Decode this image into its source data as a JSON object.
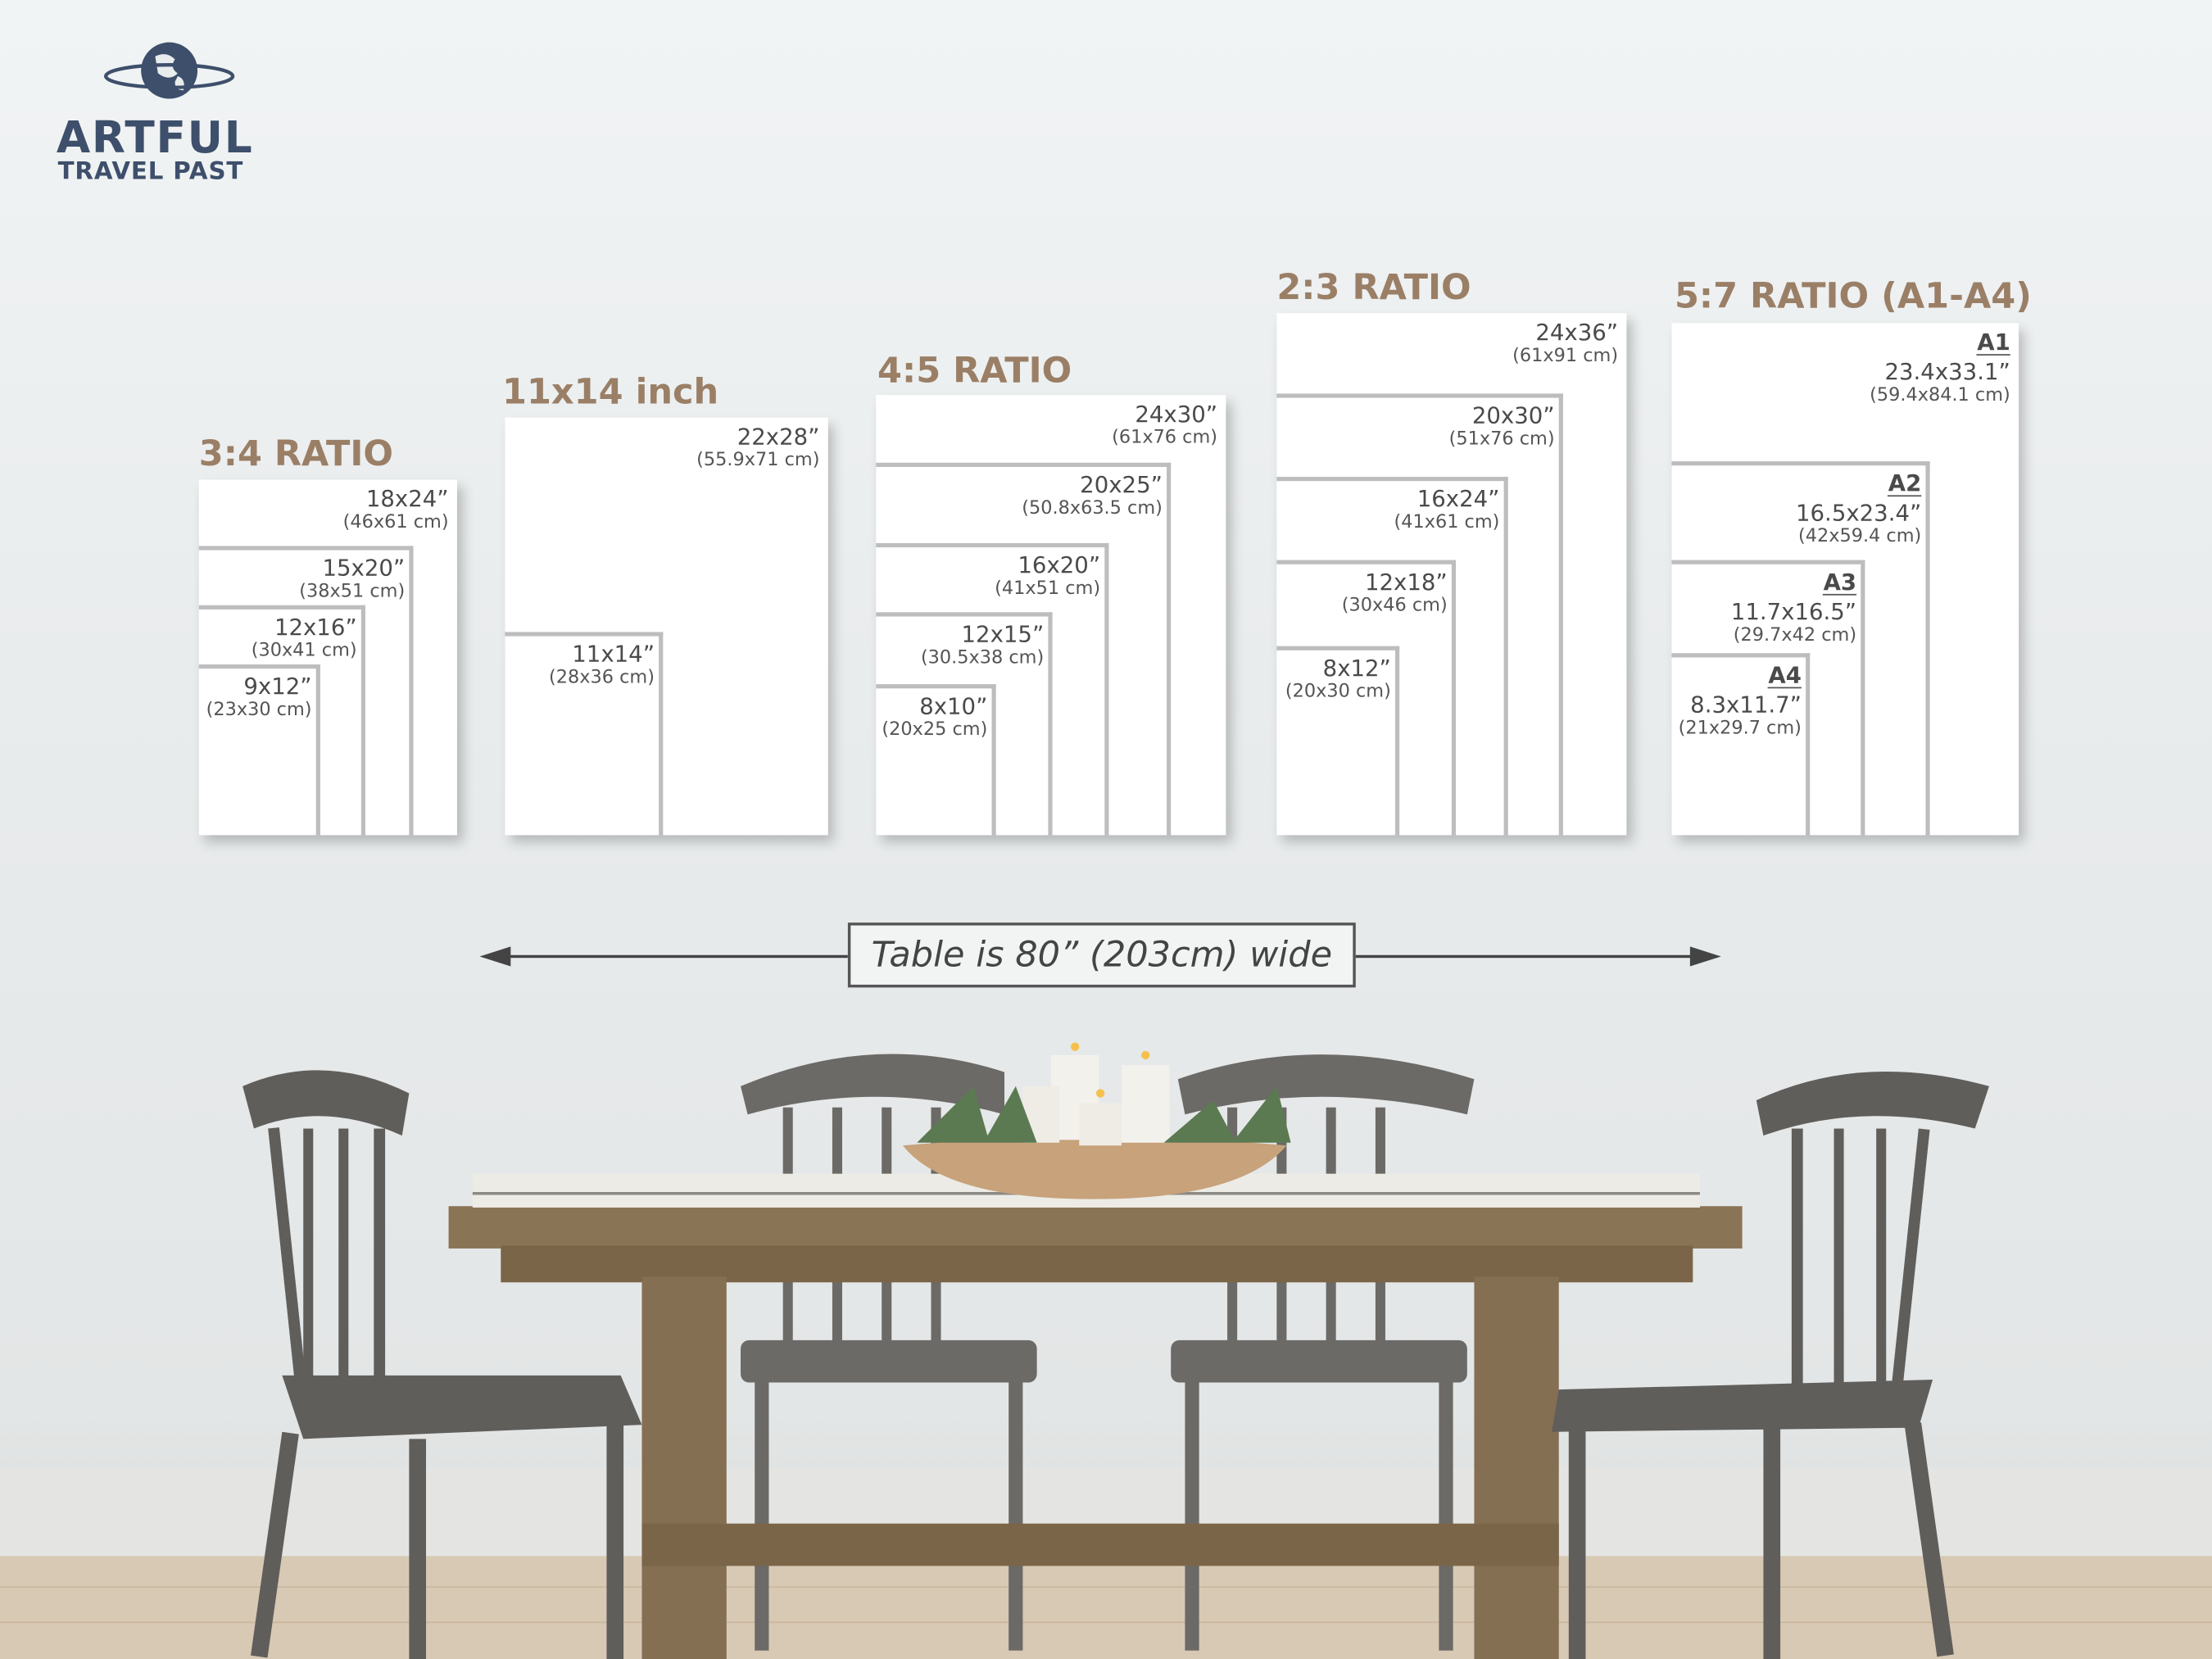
{
  "logo": {
    "line1": "ARTFUL",
    "line2": "TRAVEL PAST"
  },
  "panels": [
    {
      "title": "3:4 RATIO",
      "sizes": [
        {
          "in": "18x24”",
          "cm": "(46x61 cm)"
        },
        {
          "in": "15x20”",
          "cm": "(38x51 cm)"
        },
        {
          "in": "12x16”",
          "cm": "(30x41 cm)"
        },
        {
          "in": "9x12”",
          "cm": "(23x30 cm)"
        }
      ]
    },
    {
      "title": "11x14 inch",
      "sizes": [
        {
          "in": "22x28”",
          "cm": "(55.9x71 cm)"
        },
        {
          "in": "11x14”",
          "cm": "(28x36 cm)"
        }
      ]
    },
    {
      "title": "4:5 RATIO",
      "sizes": [
        {
          "in": "24x30”",
          "cm": "(61x76 cm)"
        },
        {
          "in": "20x25”",
          "cm": "(50.8x63.5 cm)"
        },
        {
          "in": "16x20”",
          "cm": "(41x51 cm)"
        },
        {
          "in": "12x15”",
          "cm": "(30.5x38 cm)"
        },
        {
          "in": "8x10”",
          "cm": "(20x25 cm)"
        }
      ]
    },
    {
      "title": "2:3 RATIO",
      "sizes": [
        {
          "in": "24x36”",
          "cm": "(61x91 cm)"
        },
        {
          "in": "20x30”",
          "cm": "(51x76 cm)"
        },
        {
          "in": "16x24”",
          "cm": "(41x61 cm)"
        },
        {
          "in": "12x18”",
          "cm": "(30x46 cm)"
        },
        {
          "in": "8x12”",
          "cm": "(20x30 cm)"
        }
      ]
    },
    {
      "title": "5:7 RATIO (A1-A4)",
      "sizes": [
        {
          "name": "A1",
          "in": "23.4x33.1”",
          "cm": "(59.4x84.1 cm)"
        },
        {
          "name": "A2",
          "in": "16.5x23.4”",
          "cm": "(42x59.4 cm)"
        },
        {
          "name": "A3",
          "in": "11.7x16.5”",
          "cm": "(29.7x42 cm)"
        },
        {
          "name": "A4",
          "in": "8.3x11.7”",
          "cm": "(21x29.7 cm)"
        }
      ]
    }
  ],
  "measure": {
    "label": "Table is 80” (203cm) wide"
  },
  "colors": {
    "title": "#9a7f66",
    "logo": "#3d4f6b",
    "frame_border": "#bdbdbd"
  }
}
